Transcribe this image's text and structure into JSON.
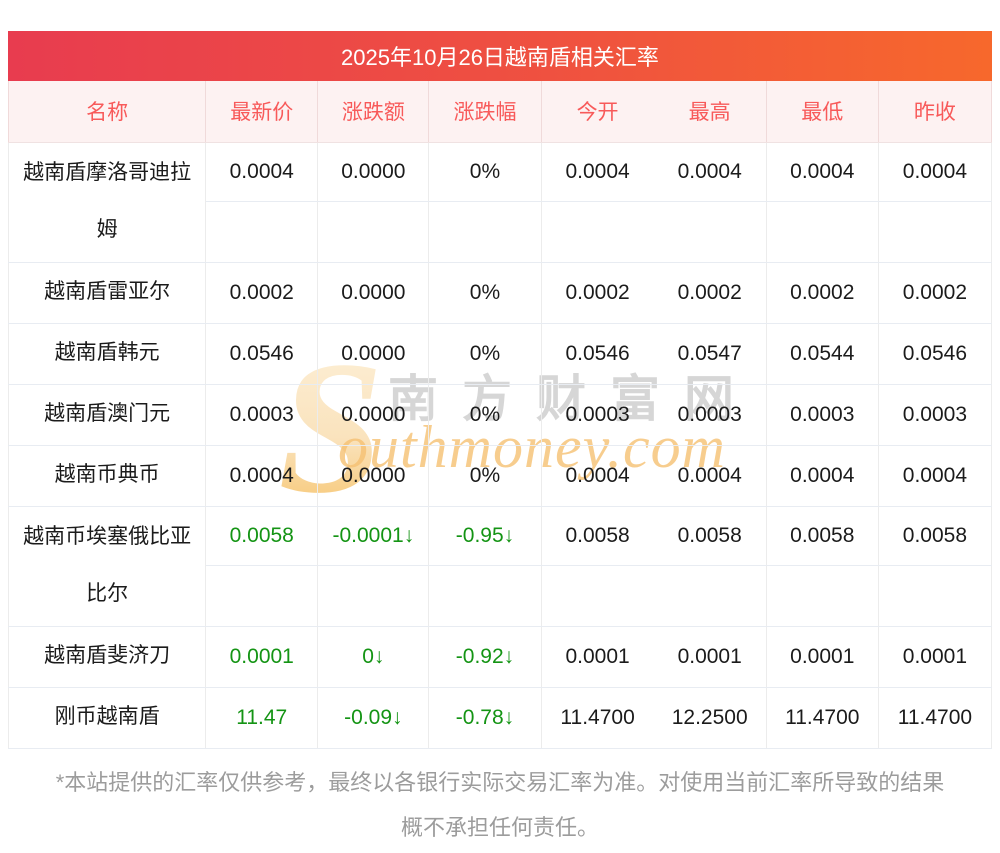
{
  "title": "2025年10月26日越南盾相关汇率",
  "table": {
    "headers": [
      "名称",
      "最新价",
      "涨跌额",
      "涨跌幅",
      "今开",
      "最高",
      "最低",
      "昨收"
    ],
    "rows": [
      {
        "name": "越南盾摩洛哥迪拉姆",
        "tall": true,
        "down": false,
        "latest": "0.0004",
        "change": "0.0000",
        "change_pct": "0%",
        "open": "0.0004",
        "high": "0.0004",
        "low": "0.0004",
        "prev_close": "0.0004"
      },
      {
        "name": "越南盾雷亚尔",
        "tall": false,
        "down": false,
        "latest": "0.0002",
        "change": "0.0000",
        "change_pct": "0%",
        "open": "0.0002",
        "high": "0.0002",
        "low": "0.0002",
        "prev_close": "0.0002"
      },
      {
        "name": "越南盾韩元",
        "tall": false,
        "down": false,
        "latest": "0.0546",
        "change": "0.0000",
        "change_pct": "0%",
        "open": "0.0546",
        "high": "0.0547",
        "low": "0.0544",
        "prev_close": "0.0546"
      },
      {
        "name": "越南盾澳门元",
        "tall": false,
        "down": false,
        "latest": "0.0003",
        "change": "0.0000",
        "change_pct": "0%",
        "open": "0.0003",
        "high": "0.0003",
        "low": "0.0003",
        "prev_close": "0.0003"
      },
      {
        "name": "越南币典币",
        "tall": false,
        "down": false,
        "latest": "0.0004",
        "change": "0.0000",
        "change_pct": "0%",
        "open": "0.0004",
        "high": "0.0004",
        "low": "0.0004",
        "prev_close": "0.0004"
      },
      {
        "name": "越南币埃塞俄比亚比尔",
        "tall": true,
        "down": true,
        "latest": "0.0058",
        "change": "-0.0001↓",
        "change_pct": "-0.95↓",
        "open": "0.0058",
        "high": "0.0058",
        "low": "0.0058",
        "prev_close": "0.0058"
      },
      {
        "name": "越南盾斐济刀",
        "tall": false,
        "down": true,
        "latest": "0.0001",
        "change": "0↓",
        "change_pct": "-0.92↓",
        "open": "0.0001",
        "high": "0.0001",
        "low": "0.0001",
        "prev_close": "0.0001"
      },
      {
        "name": "刚币越南盾",
        "tall": false,
        "down": true,
        "latest": "11.47",
        "change": "-0.09↓",
        "change_pct": "-0.78↓",
        "open": "11.4700",
        "high": "12.2500",
        "low": "11.4700",
        "prev_close": "11.4700"
      }
    ]
  },
  "watermark": {
    "s": "S",
    "cn": "南方财富网",
    "en": "outhmoney.com"
  },
  "footer": {
    "lines": [
      "*本站提供的汇率仅供参考，最终以各银行实际交易汇率为准。对使用当前汇率所导致的结果",
      "概不承担任何责任。"
    ]
  },
  "colors": {
    "title_gradient_left": "#e83c4f",
    "title_gradient_right": "#f7682c",
    "header_text": "#f85a5a",
    "header_bg": "#fdf2f2",
    "down_green": "#149414",
    "body_text": "#1b1b1b",
    "footer_text": "#9c9c9c",
    "watermark_orange": "#f6c173",
    "watermark_gray": "#d6d6d6"
  }
}
